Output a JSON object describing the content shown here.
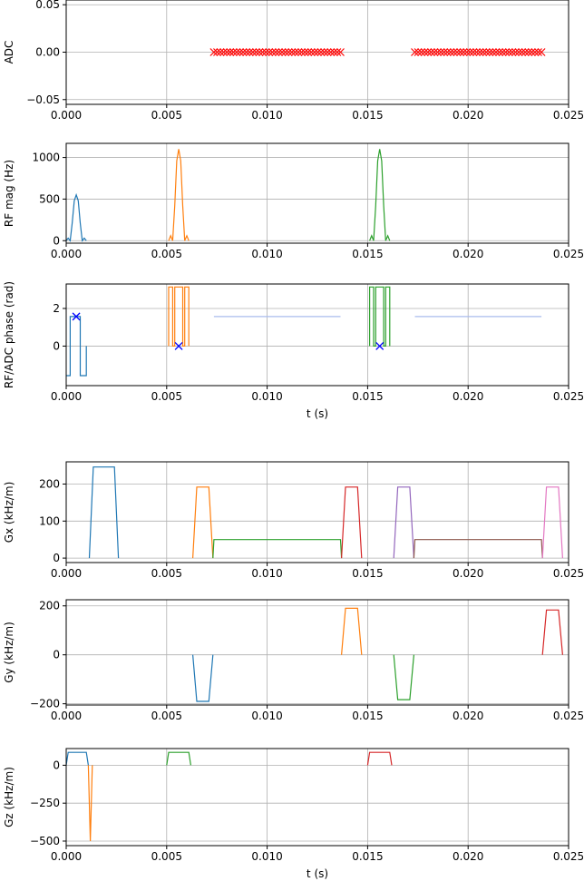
{
  "chart_data": [
    {
      "type": "scatter",
      "ylabel": "ADC",
      "xlabel": "",
      "xlim": [
        0,
        0.025
      ],
      "ylim": [
        -0.055,
        0.055
      ],
      "xticks": [
        "0.000",
        "0.005",
        "0.010",
        "0.015",
        "0.020",
        "0.025"
      ],
      "yticks": [
        {
          "v": 0.05,
          "label": "0.05"
        },
        {
          "v": 0.0,
          "label": "0.00"
        },
        {
          "v": -0.05,
          "label": "−0.05"
        }
      ],
      "grid": true,
      "series": [
        {
          "color": "#ff0000",
          "marker": "x",
          "kind": "marker-range",
          "x_start": 0.00735,
          "x_end": 0.01365,
          "count": 40,
          "y": 0
        },
        {
          "color": "#ff0000",
          "marker": "x",
          "kind": "marker-range",
          "x_start": 0.01735,
          "x_end": 0.02365,
          "count": 40,
          "y": 0
        }
      ]
    },
    {
      "type": "line",
      "ylabel": "RF mag (Hz)",
      "xlabel": "",
      "xlim": [
        0,
        0.025
      ],
      "ylim": [
        -30,
        1170
      ],
      "xticks": [
        "0.000",
        "0.005",
        "0.010",
        "0.015",
        "0.020",
        "0.025"
      ],
      "yticks": [
        {
          "v": 0,
          "label": "0"
        },
        {
          "v": 500,
          "label": "500"
        },
        {
          "v": 1000,
          "label": "1000"
        }
      ],
      "grid": true,
      "series": [
        {
          "color": "#1f77b4",
          "x": [
            0.0,
            0.0001,
            0.0002,
            0.0003,
            0.0004,
            0.0005,
            0.0006,
            0.0007,
            0.0008,
            0.0009,
            0.001
          ],
          "y": [
            0,
            30,
            0,
            210,
            480,
            550,
            480,
            210,
            0,
            30,
            0
          ]
        },
        {
          "color": "#ff7f0e",
          "x": [
            0.0051,
            0.0052,
            0.0053,
            0.0054,
            0.0055,
            0.0056,
            0.0057,
            0.0058,
            0.0059,
            0.006,
            0.0061
          ],
          "y": [
            0,
            60,
            0,
            420,
            960,
            1100,
            960,
            420,
            0,
            60,
            0
          ]
        },
        {
          "color": "#2ca02c",
          "x": [
            0.0151,
            0.0152,
            0.0153,
            0.0154,
            0.0155,
            0.0156,
            0.0157,
            0.0158,
            0.0159,
            0.016,
            0.0161
          ],
          "y": [
            0,
            60,
            0,
            420,
            960,
            1100,
            960,
            420,
            0,
            60,
            0
          ]
        }
      ]
    },
    {
      "type": "line",
      "ylabel": "RF/ADC phase (rad)",
      "xlabel": "t (s)",
      "xlim": [
        0,
        0.025
      ],
      "ylim": [
        -2.1,
        3.3
      ],
      "xticks": [
        "0.000",
        "0.005",
        "0.010",
        "0.015",
        "0.020",
        "0.025"
      ],
      "yticks": [
        {
          "v": 0,
          "label": "0"
        },
        {
          "v": 2,
          "label": "2"
        }
      ],
      "grid": true,
      "series": [
        {
          "color": "#1f77b4",
          "x": [
            0.0,
            0.0,
            0.0002,
            0.0002,
            0.0003,
            0.0003,
            0.0007,
            0.0007,
            0.0008,
            0.0008,
            0.001,
            0.001
          ],
          "y": [
            -1.57,
            -1.57,
            -1.57,
            1.57,
            1.57,
            1.57,
            1.57,
            -1.57,
            -1.57,
            -1.57,
            -1.57,
            0
          ]
        },
        {
          "color": "#ff7f0e",
          "x": [
            0.0051,
            0.0051,
            0.0053,
            0.0053,
            0.0054,
            0.0054,
            0.0058,
            0.0058,
            0.0059,
            0.0059,
            0.0061,
            0.0061
          ],
          "y": [
            0,
            3.14,
            3.14,
            0,
            0,
            3.14,
            3.14,
            0,
            0,
            3.14,
            3.14,
            0
          ]
        },
        {
          "color": "#2ca02c",
          "x": [
            0.0151,
            0.0151,
            0.0153,
            0.0153,
            0.0154,
            0.0154,
            0.0158,
            0.0158,
            0.0159,
            0.0159,
            0.0161,
            0.0161
          ],
          "y": [
            0,
            3.14,
            3.14,
            0,
            0,
            3.14,
            3.14,
            0,
            0,
            3.14,
            3.14,
            0
          ]
        },
        {
          "color": "#aabbee",
          "x": [
            0.00735,
            0.01365
          ],
          "y": [
            1.57,
            1.57
          ]
        },
        {
          "color": "#aabbee",
          "x": [
            0.01735,
            0.02365
          ],
          "y": [
            1.57,
            1.57
          ]
        }
      ],
      "markers": [
        {
          "color": "#0000ff",
          "marker": "x",
          "x": 0.0005,
          "y": 1.57
        },
        {
          "color": "#0000ff",
          "marker": "x",
          "x": 0.0056,
          "y": 0
        },
        {
          "color": "#0000ff",
          "marker": "x",
          "x": 0.0156,
          "y": 0
        }
      ]
    },
    {
      "type": "line",
      "ylabel": "Gx (kHz/m)",
      "xlabel": "",
      "xlim": [
        0,
        0.025
      ],
      "ylim": [
        -12,
        260
      ],
      "xticks": [
        "0.000",
        "0.005",
        "0.010",
        "0.015",
        "0.020",
        "0.025"
      ],
      "yticks": [
        {
          "v": 0,
          "label": "0"
        },
        {
          "v": 100,
          "label": "100"
        },
        {
          "v": 200,
          "label": "200"
        }
      ],
      "grid": true,
      "series": [
        {
          "color": "#1f77b4",
          "x": [
            0.00115,
            0.00135,
            0.0024,
            0.0026
          ],
          "y": [
            0,
            246,
            246,
            0
          ]
        },
        {
          "color": "#ff7f0e",
          "x": [
            0.0063,
            0.0065,
            0.0071,
            0.0073
          ],
          "y": [
            0,
            192,
            192,
            0
          ]
        },
        {
          "color": "#2ca02c",
          "x": [
            0.0073,
            0.00735,
            0.01365,
            0.0137
          ],
          "y": [
            0,
            50,
            50,
            0
          ]
        },
        {
          "color": "#d62728",
          "x": [
            0.0137,
            0.0139,
            0.0145,
            0.0147
          ],
          "y": [
            0,
            192,
            192,
            0
          ]
        },
        {
          "color": "#9467bd",
          "x": [
            0.0163,
            0.0165,
            0.0171,
            0.0173
          ],
          "y": [
            0,
            192,
            192,
            0
          ]
        },
        {
          "color": "#8c564b",
          "x": [
            0.0173,
            0.01735,
            0.02365,
            0.0237
          ],
          "y": [
            0,
            50,
            50,
            0
          ]
        },
        {
          "color": "#e377c2",
          "x": [
            0.0237,
            0.0239,
            0.0245,
            0.0247
          ],
          "y": [
            0,
            192,
            192,
            0
          ]
        }
      ]
    },
    {
      "type": "line",
      "ylabel": "Gy (kHz/m)",
      "xlabel": "",
      "xlim": [
        0,
        0.025
      ],
      "ylim": [
        -205,
        225
      ],
      "xticks": [
        "0.000",
        "0.005",
        "0.010",
        "0.015",
        "0.020",
        "0.025"
      ],
      "yticks": [
        {
          "v": 200,
          "label": "200"
        },
        {
          "v": 0,
          "label": "0"
        },
        {
          "v": -200,
          "label": "−200"
        }
      ],
      "grid": true,
      "series": [
        {
          "color": "#1f77b4",
          "x": [
            0.0063,
            0.0065,
            0.0071,
            0.0073
          ],
          "y": [
            0,
            -190,
            -190,
            0
          ]
        },
        {
          "color": "#ff7f0e",
          "x": [
            0.0137,
            0.0139,
            0.0145,
            0.0147
          ],
          "y": [
            0,
            190,
            190,
            0
          ]
        },
        {
          "color": "#2ca02c",
          "x": [
            0.0163,
            0.0165,
            0.0171,
            0.0173
          ],
          "y": [
            0,
            -183,
            -183,
            0
          ]
        },
        {
          "color": "#d62728",
          "x": [
            0.0237,
            0.0239,
            0.0245,
            0.0247
          ],
          "y": [
            0,
            183,
            183,
            0
          ]
        }
      ]
    },
    {
      "type": "line",
      "ylabel": "Gz (kHz/m)",
      "xlabel": "t (s)",
      "xlim": [
        0,
        0.025
      ],
      "ylim": [
        -530,
        110
      ],
      "xticks": [
        "0.000",
        "0.005",
        "0.010",
        "0.015",
        "0.020",
        "0.025"
      ],
      "yticks": [
        {
          "v": 0,
          "label": "0"
        },
        {
          "v": -250,
          "label": "−250"
        },
        {
          "v": -500,
          "label": "−500"
        }
      ],
      "grid": true,
      "series": [
        {
          "color": "#1f77b4",
          "x": [
            0.0,
            0.0001,
            0.001,
            0.0011
          ],
          "y": [
            0,
            85,
            85,
            0
          ]
        },
        {
          "color": "#ff7f0e",
          "x": [
            0.0011,
            0.0012,
            0.0013
          ],
          "y": [
            0,
            -500,
            0
          ]
        },
        {
          "color": "#2ca02c",
          "x": [
            0.005,
            0.0051,
            0.0061,
            0.0062
          ],
          "y": [
            0,
            85,
            85,
            0
          ]
        },
        {
          "color": "#d62728",
          "x": [
            0.015,
            0.0151,
            0.0161,
            0.0162
          ],
          "y": [
            0,
            85,
            85,
            0
          ]
        }
      ]
    }
  ]
}
